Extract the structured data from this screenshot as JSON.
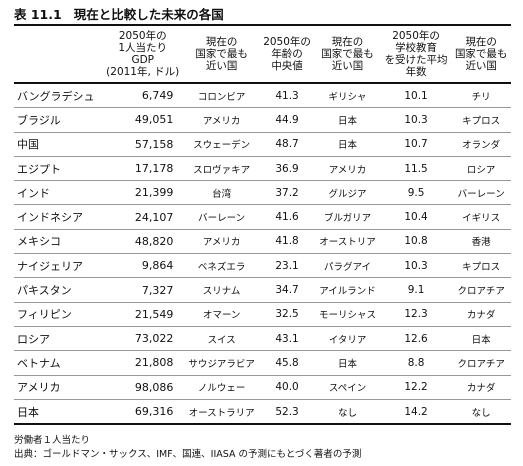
{
  "header": {
    "label": "表 11.1",
    "title": "現在と比較した未来の各国"
  },
  "table": {
    "columns": [
      [
        "2050年の",
        "1人当たり",
        "GDP",
        "(2011年, ドル)"
      ],
      [
        "現在の",
        "国家で最も",
        "近い国"
      ],
      [
        "2050年の",
        "年齢の",
        "中央値"
      ],
      [
        "現在の",
        "国家で最も",
        "近い国"
      ],
      [
        "2050年の",
        "学校教育",
        "を受けた平均",
        "年数"
      ],
      [
        "現在の",
        "国家で最も",
        "近い国"
      ]
    ],
    "rows": [
      [
        "バングラデシュ",
        "6,749",
        "コロンビア",
        "41.3",
        "ギリシャ",
        "10.1",
        "チリ"
      ],
      [
        "ブラジル",
        "49,051",
        "アメリカ",
        "44.9",
        "日本",
        "10.3",
        "キプロス"
      ],
      [
        "中国",
        "57,158",
        "スウェーデン",
        "48.7",
        "日本",
        "10.7",
        "オランダ"
      ],
      [
        "エジプト",
        "17,178",
        "スロヴァキア",
        "36.9",
        "アメリカ",
        "11.5",
        "ロシア"
      ],
      [
        "インド",
        "21,399",
        "台湾",
        "37.2",
        "グルジア",
        "9.5",
        "バーレーン"
      ],
      [
        "インドネシア",
        "24,107",
        "バーレーン",
        "41.6",
        "ブルガリア",
        "10.4",
        "イギリス"
      ],
      [
        "メキシコ",
        "48,820",
        "アメリカ",
        "41.8",
        "オーストリア",
        "10.8",
        "香港"
      ],
      [
        "ナイジェリア",
        "9,864",
        "ベネズエラ",
        "23.1",
        "パラグアイ",
        "10.3",
        "キプロス"
      ],
      [
        "パキスタン",
        "7,327",
        "スリナム",
        "34.7",
        "アイルランド",
        "9.1",
        "クロアチア"
      ],
      [
        "フィリピン",
        "21,549",
        "オマーン",
        "32.5",
        "モーリシャス",
        "12.3",
        "カナダ"
      ],
      [
        "ロシア",
        "73,022",
        "スイス",
        "43.1",
        "イタリア",
        "12.6",
        "日本"
      ],
      [
        "ベトナム",
        "21,808",
        "サウジアラビア",
        "45.8",
        "日本",
        "8.8",
        "クロアチア"
      ],
      [
        "アメリカ",
        "98,086",
        "ノルウェー",
        "40.0",
        "スペイン",
        "12.2",
        "カナダ"
      ],
      [
        "日本",
        "69,316",
        "オーストラリア",
        "52.3",
        "なし",
        "14.2",
        "なし"
      ]
    ]
  },
  "notes": [
    "労働者１人当たり",
    "出典：ゴールドマン・サックス、IMF、国連、IIASA の予測にもとづく著者の予測"
  ]
}
